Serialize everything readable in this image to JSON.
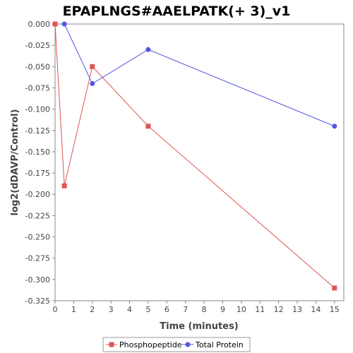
{
  "chart_data": {
    "type": "line",
    "title": "EPAPLNGS#AAELPATK(+ 3)_v1",
    "xlabel": "Time (minutes)",
    "ylabel": "log2(dDAVP/Control)",
    "xlim": [
      0,
      15.5
    ],
    "ylim": [
      -0.325,
      0.0
    ],
    "x_ticks": [
      "0",
      "1",
      "2",
      "3",
      "4",
      "5",
      "6",
      "7",
      "8",
      "9",
      "10",
      "11",
      "12",
      "13",
      "14",
      "15"
    ],
    "y_ticks": [
      "0.000",
      "-0.025",
      "-0.050",
      "-0.075",
      "-0.100",
      "-0.125",
      "-0.150",
      "-0.175",
      "-0.200",
      "-0.225",
      "-0.250",
      "-0.275",
      "-0.300",
      "-0.325"
    ],
    "grid": false,
    "legend_position": "bottom",
    "series": [
      {
        "name": "Phosphopeptide",
        "color": "#e05555",
        "marker": "square",
        "points": [
          [
            0,
            0.0
          ],
          [
            0.5,
            -0.19
          ],
          [
            2,
            -0.05
          ],
          [
            5,
            -0.12
          ],
          [
            15,
            -0.31
          ]
        ]
      },
      {
        "name": "Total Protein",
        "color": "#5555e0",
        "marker": "circle",
        "points": [
          [
            0.5,
            0.0
          ],
          [
            2,
            -0.07
          ],
          [
            5,
            -0.03
          ],
          [
            15,
            -0.12
          ]
        ]
      }
    ]
  }
}
